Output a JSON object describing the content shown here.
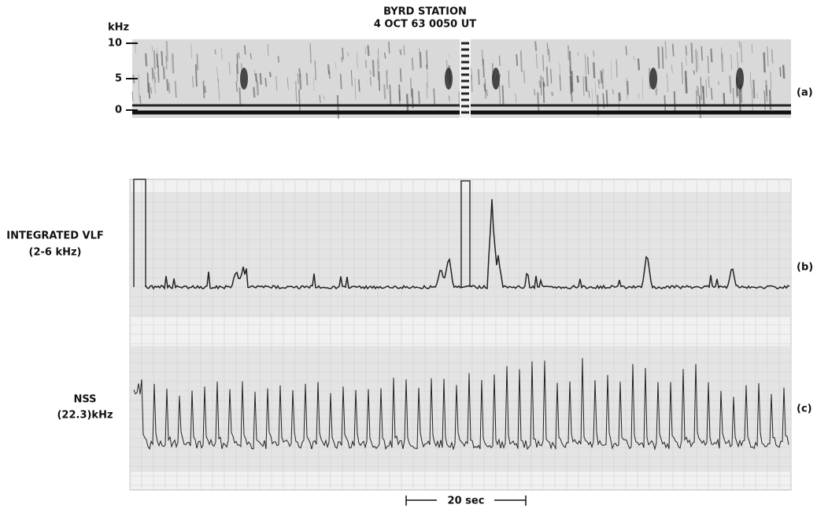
{
  "figure": {
    "title": "BYRD STATION",
    "subtitle": "4 OCT 63 0050 UT",
    "panel_a": {
      "axis_unit": "kHz",
      "ticks": [
        "10",
        "5",
        "0"
      ],
      "label": "(a)"
    },
    "panel_b": {
      "name": "INTEGRATED VLF",
      "band": "(2-6 kHz)",
      "label": "(b)"
    },
    "panel_c": {
      "name": "NSS",
      "band": "(22.3)kHz",
      "label": "(c)"
    },
    "scale_bar": "20 sec"
  }
}
